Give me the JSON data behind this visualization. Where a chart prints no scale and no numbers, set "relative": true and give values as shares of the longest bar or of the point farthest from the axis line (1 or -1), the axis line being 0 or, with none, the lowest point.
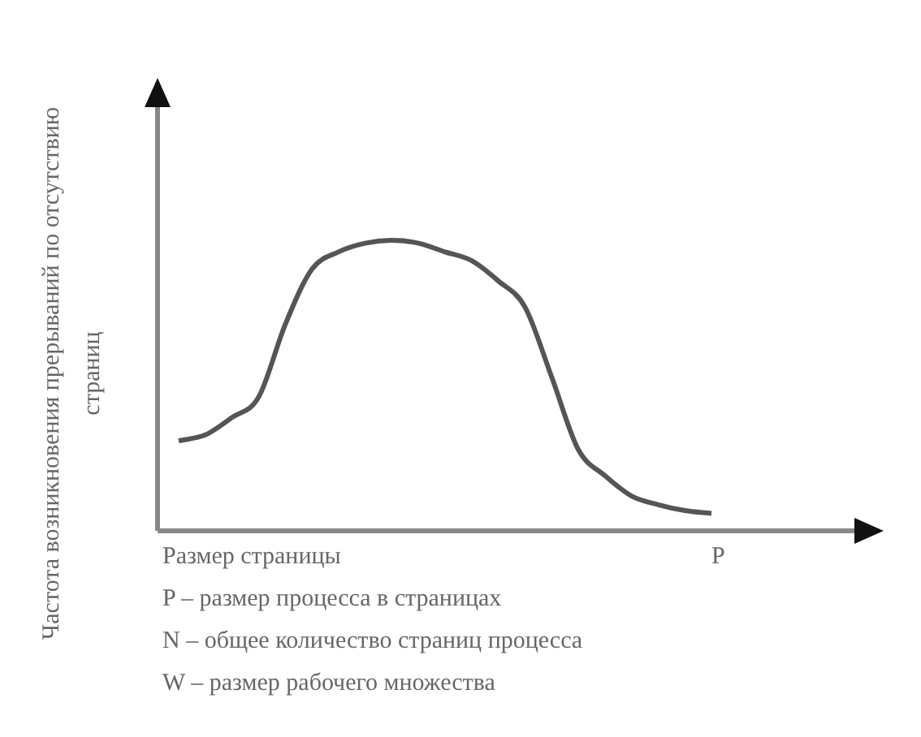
{
  "chart_data": {
    "type": "line",
    "relative": true,
    "ylabel": "Частота возникновения прерываний по отсутствию страниц",
    "xlabel": "Размер страницы",
    "categories": [
      null,
      null,
      null,
      null,
      null,
      null,
      null,
      null,
      null,
      null,
      null,
      null,
      null,
      null,
      null,
      null,
      null,
      null,
      null,
      null,
      null
    ],
    "series": [
      {
        "color": "#555555",
        "values": [
          0.31,
          0.33,
          0.39,
          0.46,
          0.71,
          0.9,
          0.96,
          0.99,
          1,
          0.99,
          0.96,
          0.93,
          0.86,
          0.77,
          0.53,
          0.28,
          0.19,
          0.12,
          0.09,
          0.07,
          0.06
        ]
      }
    ],
    "annotations": [
      "P",
      "P – размер процесса в страницах",
      "N – общее количество страниц процесса",
      "W – размер рабочего множества"
    ],
    "marker": "none"
  }
}
